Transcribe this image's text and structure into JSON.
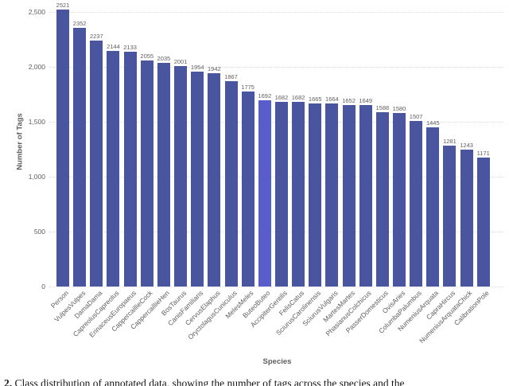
{
  "chart_data": {
    "type": "bar",
    "title": "",
    "xlabel": "Species",
    "ylabel": "Number of Tags",
    "ylim": [
      0,
      2500
    ],
    "ytick_values": [
      0,
      500,
      1000,
      1500,
      2000,
      2500
    ],
    "ytick_labels": [
      "0",
      "500",
      "1,000",
      "1,500",
      "2,000",
      "2,500"
    ],
    "grid": "horizontal-dotted",
    "legend": "none",
    "bar_value_labels_shown": true,
    "categories": [
      "Person",
      "VulpesVulpes",
      "DamaDama",
      "CapreolusCapreolus",
      "ErinaceusEuropaeus",
      "CappercaillieCock",
      "CappercaillieHen",
      "BosTaurus",
      "CanisFamiliaris",
      "CervusElaphus",
      "OryctolagusCuniculus",
      "MelesMeles",
      "ButeoButeo",
      "AccipiterGentilis",
      "FelisCatus",
      "SciurusCarolinensis",
      "SciurusVulgaris",
      "MartesMartes",
      "PhasianusColchicus",
      "PasserDomesticus",
      "OvisAries",
      "ColumbaPalumbus",
      "NumeniusArquata",
      "CapraHircus",
      "NumeniusArquataChick",
      "CalibrationPole"
    ],
    "values": [
      2521,
      2352,
      2237,
      2144,
      2133,
      2055,
      2035,
      2001,
      1954,
      1942,
      1867,
      1775,
      1692,
      1682,
      1682,
      1665,
      1664,
      1652,
      1649,
      1588,
      1580,
      1507,
      1445,
      1281,
      1243,
      1171
    ],
    "highlighted_category": "ButeoButeo",
    "highlight_index": 12,
    "colors": {
      "bar": "#4a55a0",
      "highlight": "#585dcb",
      "gridline": "#dcdcdc",
      "label_text": "#605e5c",
      "axis_title_text": "#605e5c"
    }
  },
  "caption": {
    "number": "2.",
    "text": "Class distribution of annotated data, showing the number of tags across the species and the"
  }
}
